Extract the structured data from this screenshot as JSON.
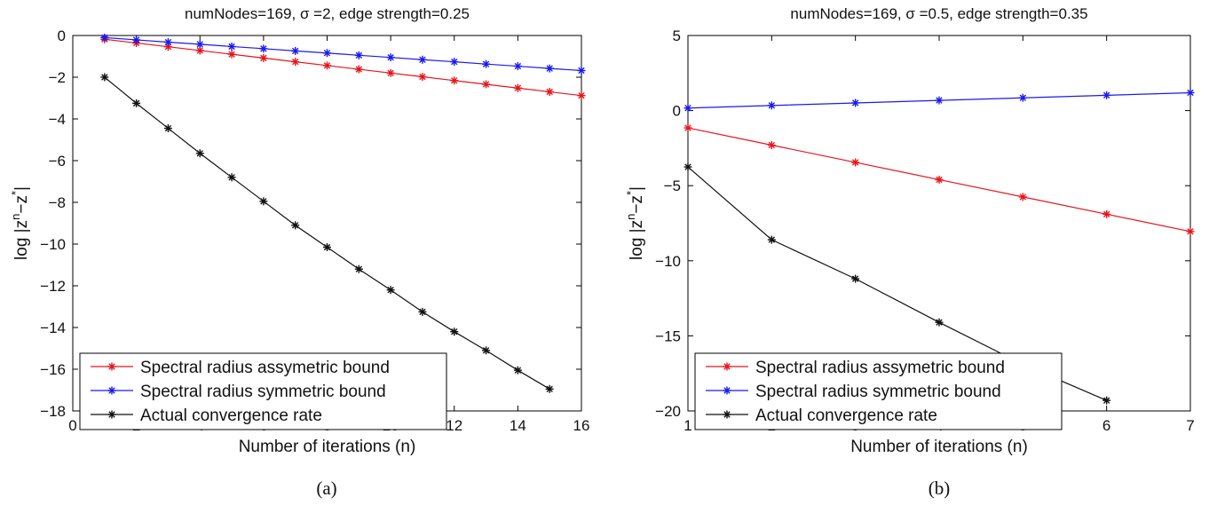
{
  "chart_data": [
    {
      "type": "line",
      "title": "numNodes=169, σ =2, edge strength=0.25",
      "xlabel": "Number of iterations (n)",
      "ylabel": "log |z^n−z^*|",
      "caption": "(a)",
      "xlim": [
        0,
        16
      ],
      "ylim": [
        -18,
        0
      ],
      "xticks": [
        0,
        2,
        4,
        6,
        8,
        10,
        12,
        14,
        16
      ],
      "yticks": [
        0,
        -2,
        -4,
        -6,
        -8,
        -10,
        -12,
        -14,
        -16,
        -18
      ],
      "legend": "bottom-left",
      "grid": false,
      "series": [
        {
          "name": "Spectral radius assymetric bound",
          "color": "#e8141c",
          "x": [
            1,
            2,
            3,
            4,
            5,
            6,
            7,
            8,
            9,
            10,
            11,
            12,
            13,
            14,
            15,
            16
          ],
          "y": [
            -0.18,
            -0.36,
            -0.54,
            -0.72,
            -0.9,
            -1.08,
            -1.26,
            -1.44,
            -1.62,
            -1.8,
            -1.98,
            -2.16,
            -2.34,
            -2.52,
            -2.7,
            -2.88
          ]
        },
        {
          "name": "Spectral radius symmetric bound",
          "color": "#1a1aee",
          "x": [
            1,
            2,
            3,
            4,
            5,
            6,
            7,
            8,
            9,
            10,
            11,
            12,
            13,
            14,
            15,
            16
          ],
          "y": [
            -0.1,
            -0.21,
            -0.32,
            -0.42,
            -0.53,
            -0.63,
            -0.74,
            -0.84,
            -0.95,
            -1.05,
            -1.16,
            -1.26,
            -1.37,
            -1.47,
            -1.58,
            -1.68
          ]
        },
        {
          "name": "Actual convergence rate",
          "color": "#111111",
          "x": [
            1,
            2,
            3,
            4,
            5,
            6,
            7,
            8,
            9,
            10,
            11,
            12,
            13,
            14,
            15
          ],
          "y": [
            -2.0,
            -3.25,
            -4.45,
            -5.65,
            -6.8,
            -7.95,
            -9.1,
            -10.15,
            -11.2,
            -12.2,
            -13.25,
            -14.2,
            -15.1,
            -16.05,
            -16.95
          ]
        }
      ]
    },
    {
      "type": "line",
      "title": "numNodes=169, σ =0.5, edge strength=0.35",
      "xlabel": "Number of iterations (n)",
      "ylabel": "log |z^n−z^*|",
      "caption": "(b)",
      "xlim": [
        1,
        7
      ],
      "ylim": [
        -20,
        5
      ],
      "xticks": [
        1,
        2,
        3,
        4,
        5,
        6,
        7
      ],
      "yticks": [
        5,
        0,
        -5,
        -10,
        -15,
        -20
      ],
      "legend": "bottom-left",
      "grid": false,
      "series": [
        {
          "name": "Spectral radius assymetric bound",
          "color": "#e8141c",
          "x": [
            1,
            2,
            3,
            4,
            5,
            6,
            7
          ],
          "y": [
            -1.15,
            -2.3,
            -3.45,
            -4.6,
            -5.75,
            -6.9,
            -8.05
          ]
        },
        {
          "name": "Spectral radius symmetric bound",
          "color": "#1a1aee",
          "x": [
            1,
            2,
            3,
            4,
            5,
            6,
            7
          ],
          "y": [
            0.17,
            0.34,
            0.51,
            0.68,
            0.85,
            1.02,
            1.19
          ]
        },
        {
          "name": "Actual convergence rate",
          "color": "#111111",
          "x": [
            1,
            2,
            3,
            4,
            5,
            6
          ],
          "y": [
            -3.75,
            -8.6,
            -11.2,
            -14.1,
            -16.9,
            -19.3
          ]
        }
      ]
    }
  ]
}
